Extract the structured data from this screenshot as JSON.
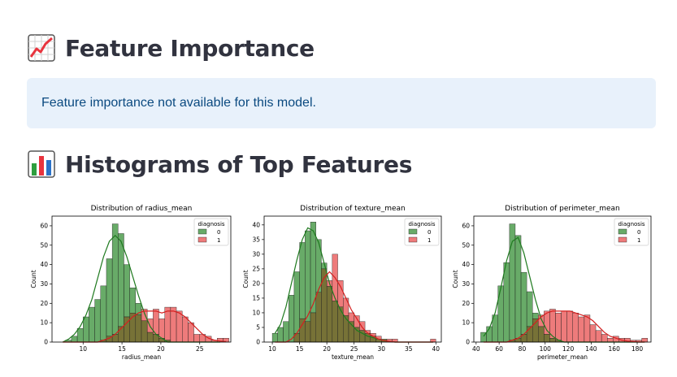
{
  "section1": {
    "title": "Feature Importance",
    "icon": "chart-increasing-icon"
  },
  "alert": {
    "text": "Feature importance not available for this model."
  },
  "section2": {
    "title": "Histograms of Top Features",
    "icon": "bar-chart-icon"
  },
  "colors": {
    "benign": "#2e8b2e",
    "malignant": "#e84848",
    "overlap": "#6b6626",
    "alert_bg": "#e8f1fb"
  },
  "chart_data": [
    {
      "type": "bar",
      "title": "Distribution of radius_mean",
      "xlabel": "radius_mean",
      "ylabel": "Count",
      "legend_title": "diagnosis",
      "legend_position": "top-right",
      "xlim": [
        6,
        29
      ],
      "ylim": [
        0,
        65
      ],
      "xticks": [
        10,
        15,
        20,
        25
      ],
      "yticks": [
        0,
        10,
        20,
        30,
        40,
        50,
        60
      ],
      "bin_start": 7,
      "bin_width": 0.75,
      "series": [
        {
          "name": "0",
          "values": [
            0,
            1,
            3,
            7,
            13,
            18,
            22,
            29,
            43,
            61,
            56,
            40,
            28,
            20,
            11,
            5,
            4,
            2,
            1,
            0,
            0,
            0,
            0,
            0,
            0,
            0,
            0,
            0
          ],
          "kde": [
            0,
            1.5,
            4,
            8,
            14,
            22,
            33,
            44,
            52,
            55,
            52,
            44,
            34,
            24,
            15,
            8,
            4,
            2,
            0,
            0,
            0,
            0,
            0,
            0,
            0,
            0,
            0,
            0
          ]
        },
        {
          "name": "1",
          "values": [
            0,
            0,
            0,
            0,
            0,
            0,
            0,
            1,
            3,
            4,
            8,
            13,
            15,
            14,
            17,
            12,
            17,
            12,
            18,
            18,
            16,
            13,
            10,
            4,
            4,
            3,
            1,
            2,
            2
          ],
          "kde": [
            0,
            0,
            0,
            0,
            0,
            0,
            0,
            1,
            2,
            4,
            7,
            10,
            13,
            15,
            16,
            16,
            16,
            15,
            16,
            16,
            15,
            13,
            10,
            7,
            4,
            2,
            1,
            0.5,
            0.2
          ]
        }
      ]
    },
    {
      "type": "bar",
      "title": "Distribution of texture_mean",
      "xlabel": "texture_mean",
      "ylabel": "Count",
      "legend_title": "diagnosis",
      "legend_position": "top-right",
      "xlim": [
        8.5,
        41
      ],
      "ylim": [
        0,
        43
      ],
      "xticks": [
        10,
        15,
        20,
        25,
        30,
        35,
        40
      ],
      "yticks": [
        0,
        5,
        10,
        15,
        20,
        25,
        30,
        35,
        40
      ],
      "bin_start": 10,
      "bin_width": 1,
      "series": [
        {
          "name": "0",
          "values": [
            3,
            5,
            7,
            16,
            24,
            34,
            38,
            41,
            35,
            27,
            19,
            14,
            12,
            9,
            7,
            5,
            4,
            3,
            2,
            1,
            1,
            0,
            0,
            0,
            0,
            0,
            0,
            0,
            0,
            0
          ],
          "kde": [
            3,
            6,
            12,
            20,
            28,
            35,
            39,
            38,
            34,
            27,
            20,
            15,
            11,
            8,
            6,
            4,
            3,
            2,
            1.5,
            1,
            0.5,
            0.2,
            0,
            0,
            0,
            0,
            0,
            0,
            0,
            0
          ]
        },
        {
          "name": "1",
          "values": [
            0,
            0,
            0,
            0,
            3,
            8,
            7,
            10,
            17,
            25,
            21,
            30,
            21,
            15,
            10,
            9,
            7,
            4,
            3,
            2,
            1,
            1,
            1,
            0,
            0,
            0,
            0,
            0,
            0,
            1
          ],
          "kde": [
            0,
            0,
            0,
            1,
            3,
            6,
            9,
            13,
            18,
            22,
            24,
            22,
            19,
            15,
            11,
            8,
            5,
            3,
            2,
            1,
            0.5,
            0.2,
            0,
            0,
            0,
            0,
            0,
            0,
            0,
            0
          ]
        }
      ]
    },
    {
      "type": "bar",
      "title": "Distribution of perimeter_mean",
      "xlabel": "perimeter_mean",
      "ylabel": "Count",
      "legend_title": "diagnosis",
      "legend_position": "top-right",
      "xlim": [
        38,
        192
      ],
      "ylim": [
        0,
        65
      ],
      "xticks": [
        40,
        60,
        80,
        100,
        120,
        140,
        160,
        180
      ],
      "yticks": [
        0,
        10,
        20,
        30,
        40,
        50,
        60
      ],
      "bin_start": 44,
      "bin_width": 5,
      "series": [
        {
          "name": "0",
          "values": [
            5,
            8,
            14,
            29,
            41,
            61,
            55,
            36,
            26,
            15,
            8,
            4,
            2,
            1,
            0,
            0,
            0,
            0,
            0,
            0,
            0,
            0,
            0,
            0,
            0,
            0,
            0,
            0,
            0
          ],
          "kde": [
            3,
            7,
            15,
            28,
            42,
            52,
            54,
            46,
            34,
            22,
            12,
            6,
            3,
            1,
            0,
            0,
            0,
            0,
            0,
            0,
            0,
            0,
            0,
            0,
            0,
            0,
            0,
            0,
            0
          ]
        },
        {
          "name": "1",
          "values": [
            0,
            0,
            0,
            0,
            0,
            1,
            2,
            4,
            8,
            12,
            14,
            16,
            17,
            15,
            16,
            16,
            15,
            13,
            14,
            9,
            6,
            4,
            2,
            3,
            2,
            2,
            1,
            1,
            2
          ],
          "kde": [
            0,
            0,
            0,
            0,
            0,
            1,
            2,
            4,
            7,
            10,
            13,
            15,
            16,
            16,
            16,
            16,
            15,
            14,
            13,
            11,
            8,
            5,
            3,
            2,
            1,
            0.5,
            0.2,
            0,
            0
          ]
        }
      ]
    }
  ]
}
